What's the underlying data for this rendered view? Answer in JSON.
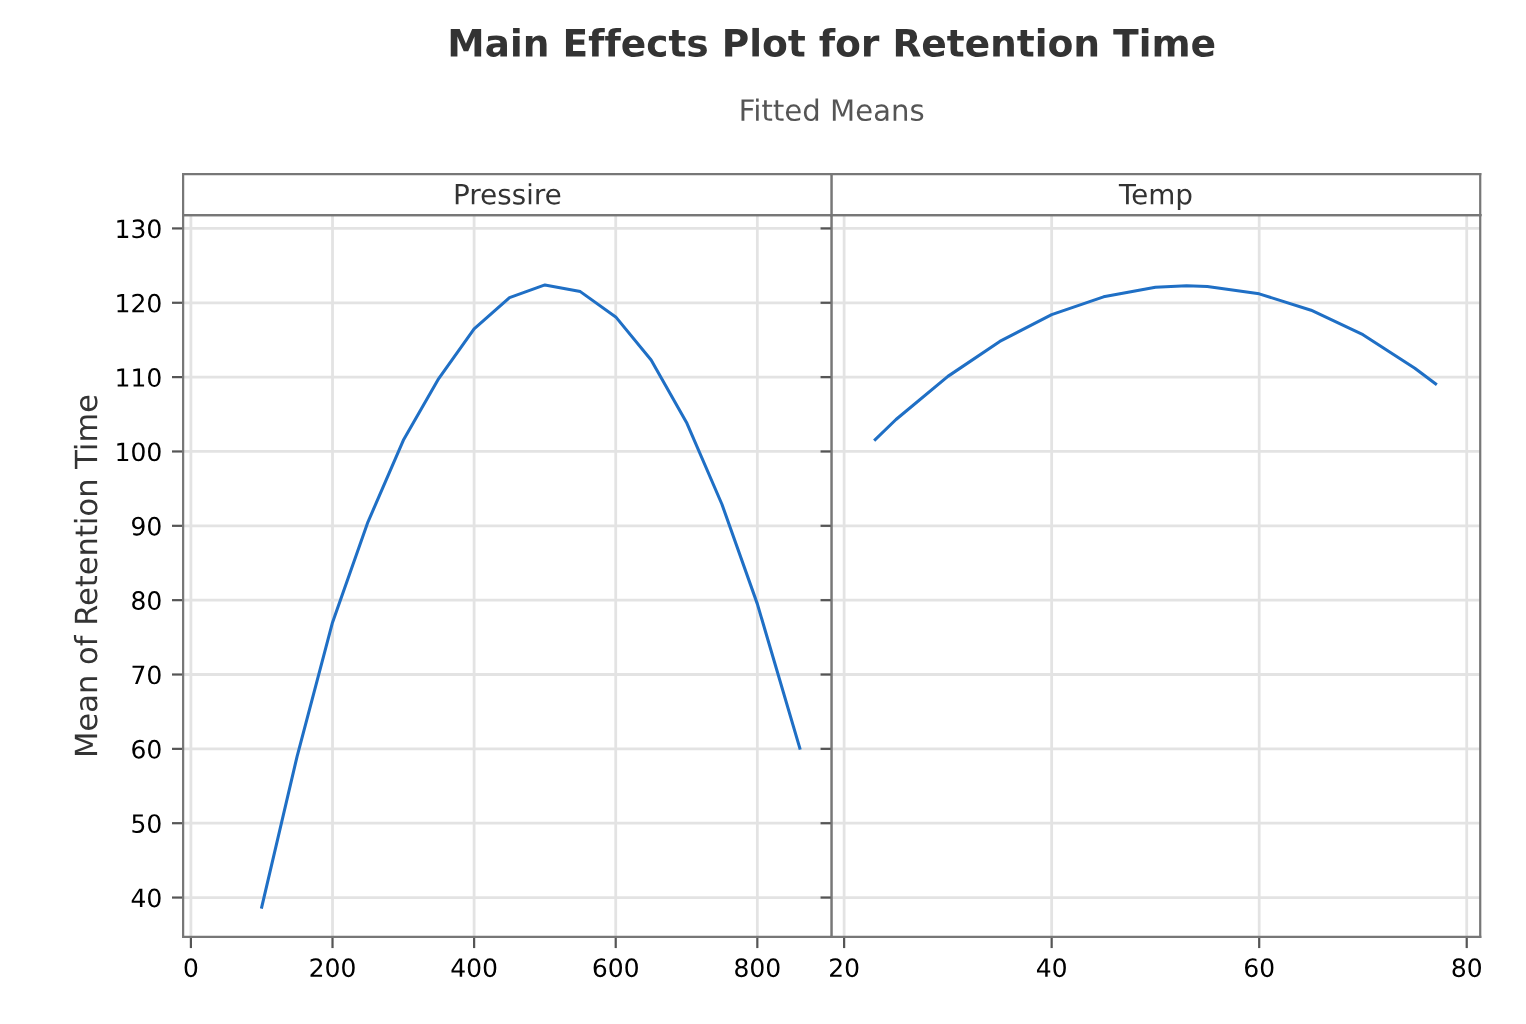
{
  "chart_data": [
    {
      "type": "other",
      "title": "Main Effects Plot for Retention Time",
      "subtitle": "Fitted Means"
    },
    {
      "type": "line",
      "title": "Pressire",
      "ylabel": "Mean of Retention Time",
      "x": [
        100,
        150,
        200,
        250,
        300,
        350,
        400,
        450,
        500,
        550,
        600,
        650,
        700,
        750,
        800,
        860
      ],
      "series": [
        {
          "color": "#1f6fc5",
          "values": [
            38.7,
            59,
            77,
            90.5,
            101.5,
            109.8,
            116.5,
            120.7,
            122.4,
            121.5,
            118.1,
            112.3,
            103.9,
            92.9,
            79.5,
            60.1
          ]
        }
      ],
      "xlim": [
        -11,
        905
      ],
      "xticks": [
        0,
        200,
        400,
        600,
        800
      ],
      "ylim": [
        34.7,
        131.8
      ],
      "yticks": [
        40,
        50,
        60,
        70,
        80,
        90,
        100,
        110,
        120,
        130
      ],
      "grid": true
    },
    {
      "type": "line",
      "title": "Temp",
      "x": [
        23,
        25,
        30,
        35,
        40,
        45,
        50,
        53,
        55,
        60,
        65,
        70,
        75,
        77
      ],
      "series": [
        {
          "color": "#1f6fc5",
          "values": [
            101.6,
            104.3,
            110.1,
            114.8,
            118.4,
            120.8,
            122.1,
            122.3,
            122.2,
            121.2,
            119.0,
            115.7,
            111.2,
            109.1
          ]
        }
      ],
      "xlim": [
        18.8,
        81.3
      ],
      "xticks": [
        20,
        40,
        60,
        80
      ],
      "ylim": [
        34.7,
        131.8
      ],
      "yticks": [
        40,
        50,
        60,
        70,
        80,
        90,
        100,
        110,
        120,
        130
      ],
      "grid": true,
      "tick_labels": "x"
    }
  ]
}
